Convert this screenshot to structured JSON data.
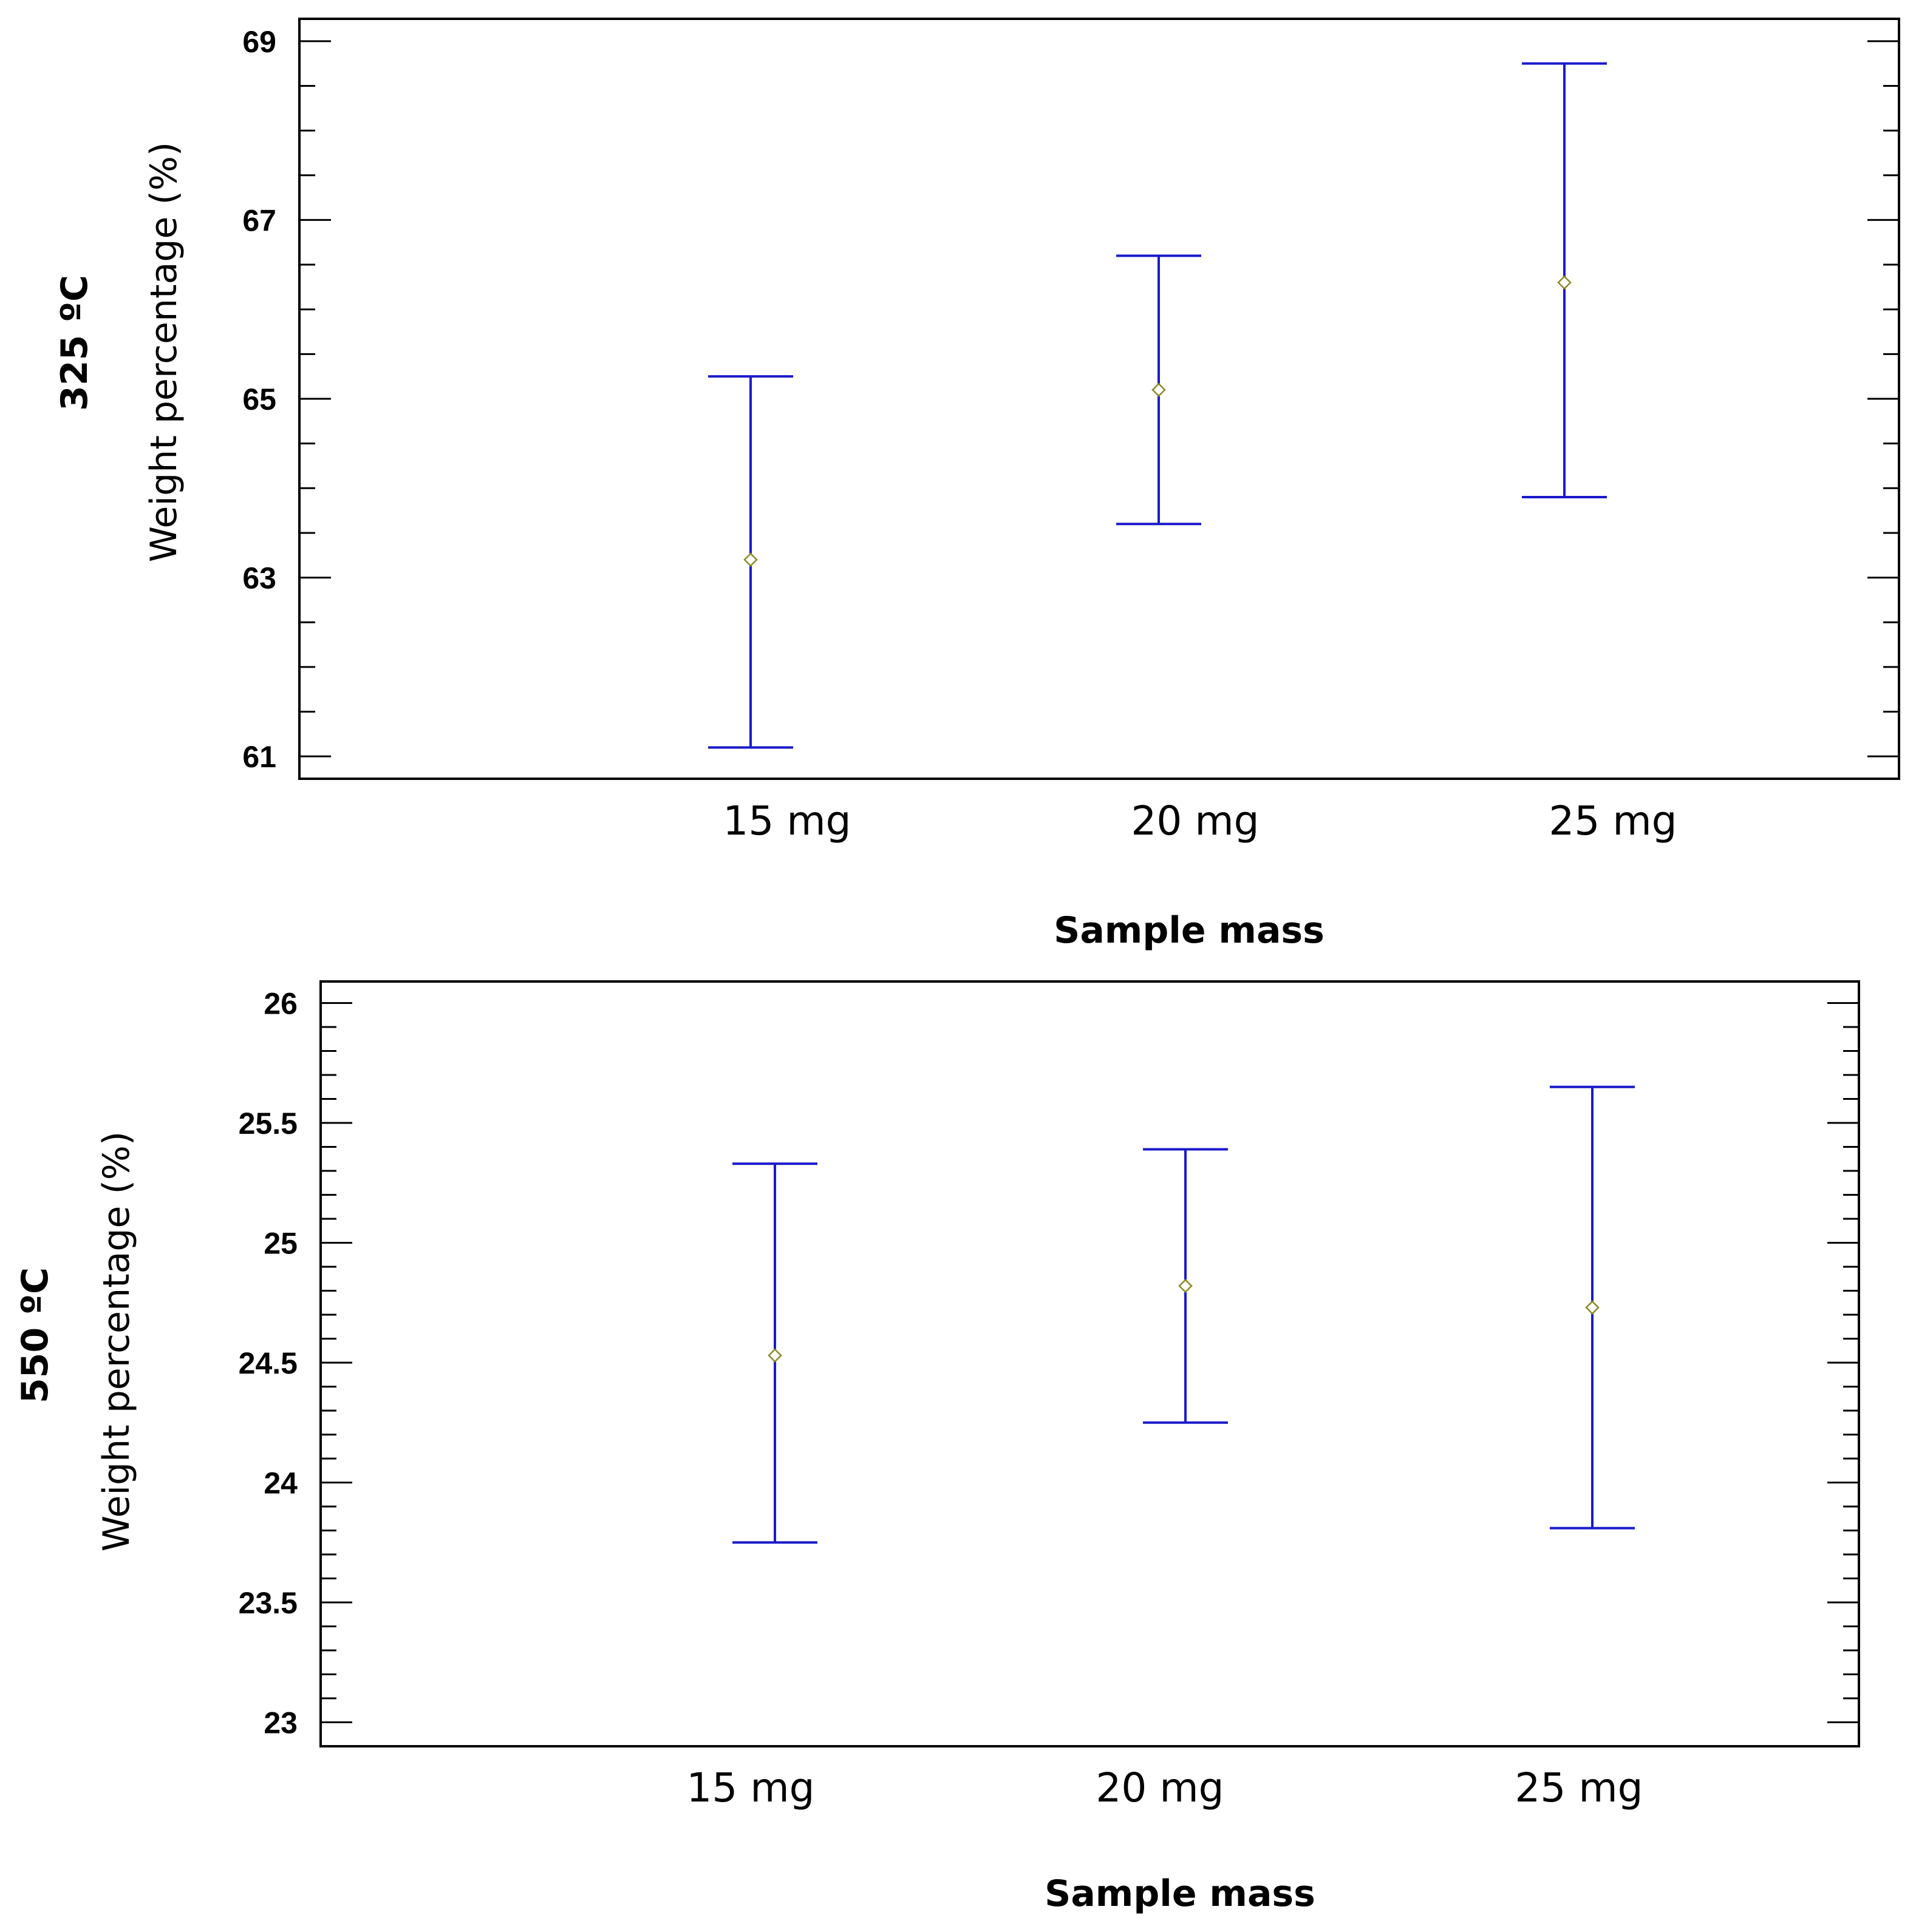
{
  "chart_data": [
    {
      "type": "errorbar",
      "panel_label": "325 ºC",
      "ylabel": "Weight percentage (%)",
      "xlabel": "Sample mass",
      "categories": [
        "15 mg",
        "20 mg",
        "25 mg"
      ],
      "values": [
        63.2,
        65.1,
        66.3
      ],
      "lower": [
        61.1,
        63.6,
        63.9
      ],
      "upper": [
        65.25,
        66.6,
        68.75
      ],
      "ylim": [
        60.75,
        69.25
      ],
      "yticks": [
        61,
        63,
        65,
        67,
        69
      ],
      "ytick_labels": [
        "61",
        "63",
        "65",
        "67",
        "69"
      ],
      "minor_step": 0.5
    },
    {
      "type": "errorbar",
      "panel_label": "550 ºC",
      "ylabel": "Weight percentage (%)",
      "xlabel": "Sample mass",
      "categories": [
        "15 mg",
        "20 mg",
        "25 mg"
      ],
      "values": [
        24.53,
        24.82,
        24.73
      ],
      "lower": [
        23.75,
        24.25,
        23.81
      ],
      "upper": [
        25.33,
        25.39,
        25.65
      ],
      "ylim": [
        22.9,
        26.09
      ],
      "yticks": [
        23,
        23.5,
        24,
        24.5,
        25,
        25.5,
        26
      ],
      "ytick_labels": [
        "23",
        "23.5",
        "24",
        "24.5",
        "25",
        "25.5",
        "26"
      ],
      "minor_step": 0.1
    }
  ],
  "colors": {
    "errorbar": "#1a1acc",
    "marker": "#8a8a2a",
    "axis": "#000000"
  }
}
